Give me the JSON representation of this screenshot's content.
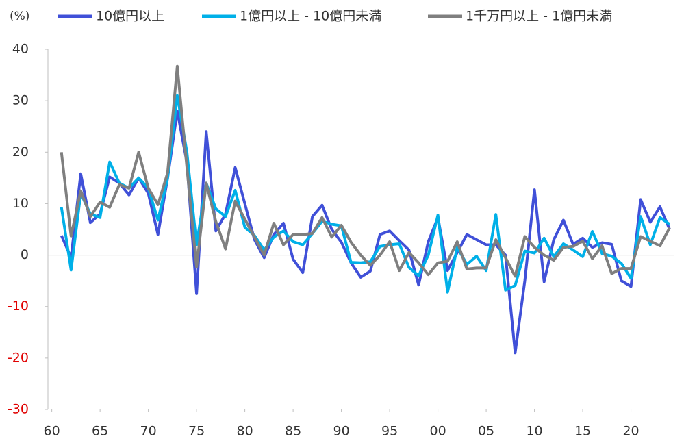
{
  "chart_data": {
    "type": "line",
    "y_label": "(%)",
    "x": [
      1961,
      1962,
      1963,
      1964,
      1965,
      1966,
      1967,
      1968,
      1969,
      1970,
      1971,
      1972,
      1973,
      1974,
      1975,
      1976,
      1977,
      1978,
      1979,
      1980,
      1981,
      1982,
      1983,
      1984,
      1985,
      1986,
      1987,
      1988,
      1989,
      1990,
      1991,
      1992,
      1993,
      1994,
      1995,
      1996,
      1997,
      1998,
      1999,
      2000,
      2001,
      2002,
      2003,
      2004,
      2005,
      2006,
      2007,
      2008,
      2009,
      2010,
      2011,
      2012,
      2013,
      2014,
      2015,
      2016,
      2017,
      2018,
      2019,
      2020,
      2021,
      2022,
      2023,
      2024
    ],
    "series": [
      {
        "name": "10億円以上",
        "color": "#4050d8",
        "values": [
          3.8,
          -0.5,
          15.8,
          6.3,
          8,
          15.2,
          14,
          11.7,
          15,
          12,
          4,
          15,
          28,
          18,
          -7.5,
          24,
          4.7,
          8,
          17,
          10,
          3,
          -0.5,
          4,
          6.2,
          -0.8,
          -3.4,
          7.5,
          9.7,
          5,
          2.5,
          -1.5,
          -4.3,
          -3.1,
          4,
          4.7,
          2.8,
          1,
          -5.8,
          2.6,
          7.3,
          -3,
          0.5,
          4,
          3,
          2,
          2,
          0,
          -19,
          -5,
          12.7,
          -5.2,
          3,
          6.8,
          2.1,
          3.3,
          1.5,
          2.4,
          2.1,
          -5,
          -6.1,
          10.8,
          6.4,
          9.4,
          5
        ]
      },
      {
        "name": "1億円以上 - 10億円未満",
        "color": "#00b0e8",
        "values": [
          9.3,
          -2.9,
          12,
          8,
          7.3,
          18.1,
          14,
          13,
          15,
          13,
          6.8,
          15,
          31,
          20,
          2,
          14,
          9,
          7.5,
          12.6,
          5.4,
          3.8,
          1,
          3.5,
          4.7,
          2.6,
          2,
          4.2,
          6.6,
          6,
          5.7,
          -1.4,
          -1.5,
          -1.3,
          1.7,
          2,
          2.2,
          -2.4,
          -4,
          0,
          7.8,
          -7.2,
          1.5,
          -1.8,
          -0.2,
          -3,
          7.9,
          -6.8,
          -5.9,
          0.8,
          0.4,
          3.3,
          -0.3,
          2.2,
          1,
          -0.3,
          4.6,
          0.3,
          -0.2,
          -1.6,
          -4.5,
          7.5,
          2,
          7.3,
          6
        ]
      },
      {
        "name": "1千万円以上 - 1億円未満",
        "color": "#7f7f7f",
        "values": [
          20,
          3.7,
          12.5,
          7.5,
          10.3,
          9.3,
          13.7,
          13,
          20,
          13,
          9.8,
          16,
          36.7,
          17,
          -2.3,
          14,
          6.5,
          1.2,
          10.5,
          7,
          3.5,
          0,
          6.2,
          2,
          4,
          4,
          4.2,
          7.3,
          3.5,
          5.8,
          2.5,
          0,
          -2,
          0,
          2.6,
          -3,
          0.5,
          -1.5,
          -3.8,
          -1.5,
          -1.2,
          2.6,
          -2.7,
          -2.5,
          -2.5,
          3,
          -0.5,
          -4.1,
          3.6,
          1.5,
          0,
          -1,
          1.5,
          1.7,
          2.7,
          -0.7,
          1.8,
          -3.6,
          -2.6,
          -2.6,
          3.6,
          2.7,
          1.8,
          5.3
        ]
      }
    ],
    "xlim": [
      1959.6,
      2024.5
    ],
    "xticks": [
      {
        "value": 1960,
        "label": "60"
      },
      {
        "value": 1965,
        "label": "65"
      },
      {
        "value": 1970,
        "label": "70"
      },
      {
        "value": 1975,
        "label": "75"
      },
      {
        "value": 1980,
        "label": "80"
      },
      {
        "value": 1985,
        "label": "85"
      },
      {
        "value": 1990,
        "label": "90"
      },
      {
        "value": 1995,
        "label": "95"
      },
      {
        "value": 2000,
        "label": "00"
      },
      {
        "value": 2005,
        "label": "05"
      },
      {
        "value": 2010,
        "label": "10"
      },
      {
        "value": 2015,
        "label": "15"
      },
      {
        "value": 2020,
        "label": "20"
      }
    ],
    "ylim": [
      -30,
      40
    ],
    "yticks": [
      -30,
      -20,
      -10,
      0,
      10,
      20,
      30,
      40
    ],
    "negative_tick_color": "#e00000",
    "legend": "top"
  }
}
